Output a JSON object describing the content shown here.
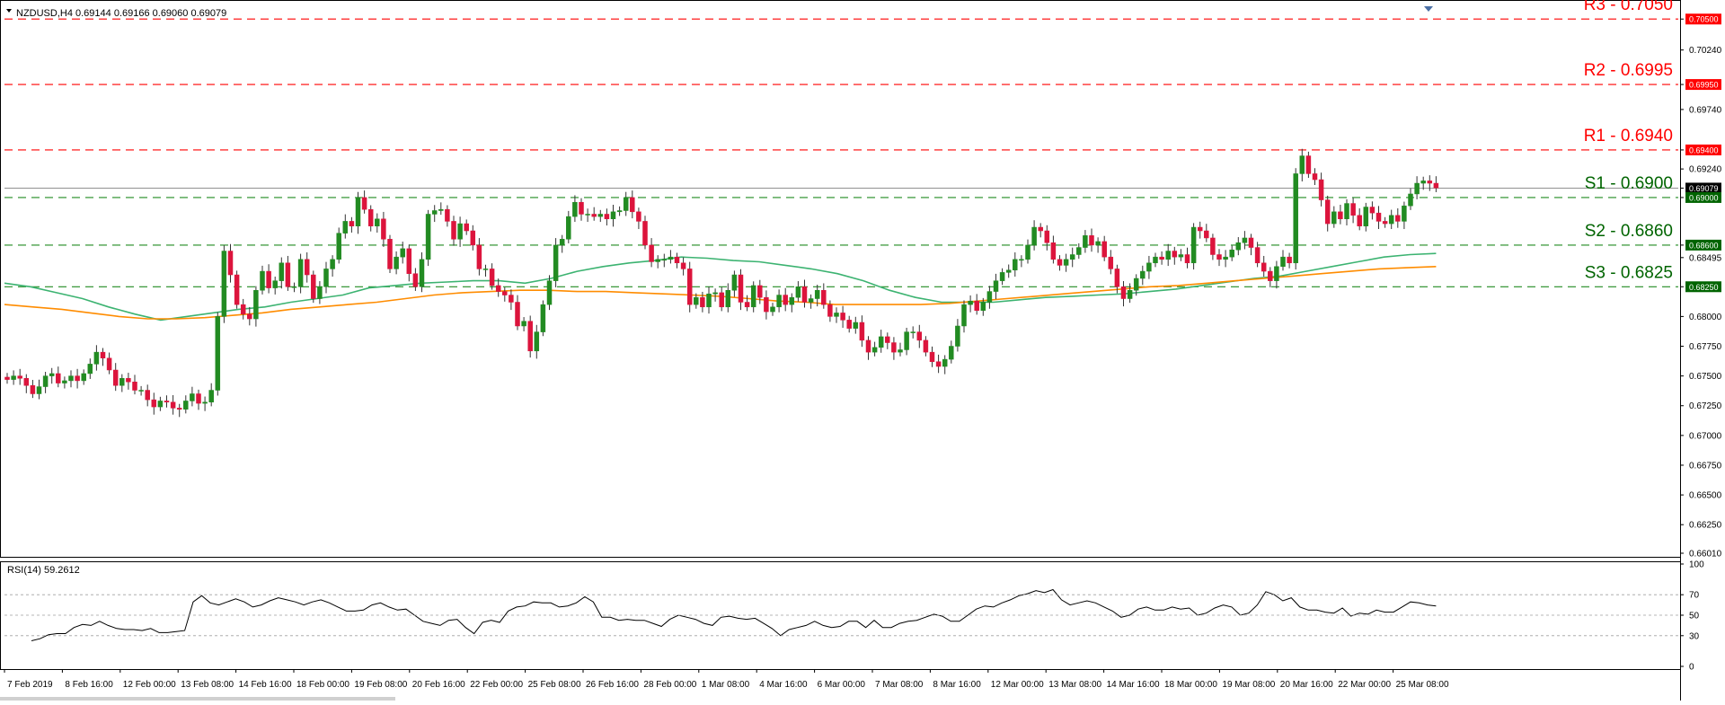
{
  "window": {
    "symbol_header": "NZDUSD,H4  0.69144 0.69166 0.69060 0.69079",
    "rsi_header": "RSI(14) 59.2612"
  },
  "colors": {
    "resistance": "#ff0000",
    "support": "#006400",
    "support_line": "#228b22",
    "bull_candle": "#228b22",
    "bear_candle": "#dc143c",
    "ma_fast": "#3cb371",
    "ma_slow": "#ff8c00",
    "rsi_line": "#000000",
    "current_price_tag": "#000000"
  },
  "price_axis": {
    "ylim": [
      0.6601,
      0.7063
    ],
    "ticks": [
      "0.70500",
      "0.70240",
      "0.69950",
      "0.69740",
      "0.69400",
      "0.69240",
      "0.69079",
      "0.69000",
      "0.68600",
      "0.68495",
      "0.68250",
      "0.68000",
      "0.67750",
      "0.67500",
      "0.67250",
      "0.67000",
      "0.66750",
      "0.66500",
      "0.66250",
      "0.66010"
    ],
    "red_tags": [
      "0.70500",
      "0.69950",
      "0.69400"
    ],
    "black_tag": "0.69079",
    "green_tags": [
      "0.69000",
      "0.68600",
      "0.68250"
    ]
  },
  "time_axis": {
    "labels": [
      "7 Feb 2019",
      "8 Feb 16:00",
      "12 Feb 00:00",
      "13 Feb 08:00",
      "14 Feb 16:00",
      "18 Feb 00:00",
      "19 Feb 08:00",
      "20 Feb 16:00",
      "22 Feb 00:00",
      "25 Feb 08:00",
      "26 Feb 16:00",
      "28 Feb 00:00",
      "1 Mar 08:00",
      "4 Mar 16:00",
      "6 Mar 00:00",
      "7 Mar 08:00",
      "8 Mar 16:00",
      "12 Mar 00:00",
      "13 Mar 08:00",
      "14 Mar 16:00",
      "18 Mar 00:00",
      "19 Mar 08:00",
      "20 Mar 16:00",
      "22 Mar 00:00",
      "25 Mar 08:00"
    ]
  },
  "levels": [
    {
      "name": "R3",
      "text": "R3 - 0.7050",
      "value": 0.705,
      "kind": "resistance"
    },
    {
      "name": "R2",
      "text": "R2 - 0.6995",
      "value": 0.6995,
      "kind": "resistance"
    },
    {
      "name": "R1",
      "text": "R1 - 0.6940",
      "value": 0.694,
      "kind": "resistance"
    },
    {
      "name": "S1",
      "text": "S1 - 0.6900",
      "value": 0.69,
      "kind": "support"
    },
    {
      "name": "S2",
      "text": "S2 - 0.6860",
      "value": 0.686,
      "kind": "support"
    },
    {
      "name": "S3",
      "text": "S3 - 0.6825",
      "value": 0.6825,
      "kind": "support"
    }
  ],
  "rsi_axis": {
    "ylim": [
      0,
      100
    ],
    "ticks": [
      "100",
      "70",
      "50",
      "30",
      "0"
    ],
    "dotted_levels": [
      70,
      50,
      30
    ]
  },
  "chart_data": {
    "type": "candlestick",
    "symbol": "NZDUSD",
    "timeframe": "H4",
    "close_series": [
      0.6747,
      0.675,
      0.6748,
      0.6742,
      0.6735,
      0.6741,
      0.675,
      0.6752,
      0.6744,
      0.6746,
      0.675,
      0.6746,
      0.6752,
      0.676,
      0.677,
      0.6765,
      0.6755,
      0.6742,
      0.6748,
      0.6745,
      0.6738,
      0.6738,
      0.673,
      0.6724,
      0.6729,
      0.6728,
      0.6723,
      0.6722,
      0.6729,
      0.6735,
      0.6727,
      0.6728,
      0.6738,
      0.68,
      0.6855,
      0.6835,
      0.681,
      0.6802,
      0.6798,
      0.6822,
      0.6838,
      0.6824,
      0.683,
      0.6845,
      0.6825,
      0.6825,
      0.6848,
      0.6835,
      0.6815,
      0.6825,
      0.684,
      0.6848,
      0.687,
      0.688,
      0.6876,
      0.69,
      0.689,
      0.6876,
      0.6882,
      0.6865,
      0.684,
      0.685,
      0.6857,
      0.6836,
      0.6825,
      0.6848,
      0.6886,
      0.6889,
      0.689,
      0.688,
      0.6865,
      0.6878,
      0.6872,
      0.686,
      0.684,
      0.684,
      0.6826,
      0.6821,
      0.6818,
      0.6812,
      0.6792,
      0.6796,
      0.6771,
      0.6787,
      0.681,
      0.683,
      0.686,
      0.6865,
      0.6884,
      0.6896,
      0.6886,
      0.6886,
      0.6884,
      0.6886,
      0.6882,
      0.6888,
      0.6889,
      0.69,
      0.6888,
      0.688,
      0.686,
      0.6846,
      0.6848,
      0.6848,
      0.685,
      0.6845,
      0.684,
      0.681,
      0.6816,
      0.6808,
      0.6819,
      0.682,
      0.6808,
      0.6822,
      0.6835,
      0.6812,
      0.6808,
      0.6826,
      0.6816,
      0.6804,
      0.6808,
      0.6818,
      0.681,
      0.6816,
      0.6825,
      0.6812,
      0.6815,
      0.6822,
      0.681,
      0.68,
      0.6803,
      0.6797,
      0.679,
      0.6795,
      0.678,
      0.677,
      0.6774,
      0.6783,
      0.6778,
      0.677,
      0.6772,
      0.6787,
      0.6787,
      0.678,
      0.677,
      0.6762,
      0.6758,
      0.6764,
      0.6775,
      0.6792,
      0.681,
      0.6813,
      0.6805,
      0.6812,
      0.6821,
      0.683,
      0.6837,
      0.6839,
      0.6848,
      0.6848,
      0.686,
      0.6875,
      0.6872,
      0.6862,
      0.6848,
      0.6843,
      0.6848,
      0.6852,
      0.6858,
      0.6868,
      0.686,
      0.6863,
      0.685,
      0.684,
      0.6825,
      0.6815,
      0.6822,
      0.6832,
      0.6838,
      0.6845,
      0.685,
      0.6848,
      0.6855,
      0.685,
      0.6852,
      0.6845,
      0.6875,
      0.6872,
      0.6866,
      0.6852,
      0.6848,
      0.685,
      0.6856,
      0.6862,
      0.6866,
      0.6858,
      0.6845,
      0.6838,
      0.683,
      0.6842,
      0.685,
      0.6845,
      0.692,
      0.6935,
      0.692,
      0.6915,
      0.6898,
      0.6878,
      0.6888,
      0.6882,
      0.6895,
      0.6885,
      0.6876,
      0.6892,
      0.6887,
      0.688,
      0.6878,
      0.6885,
      0.688,
      0.6893,
      0.6903,
      0.6912,
      0.6914,
      0.6912,
      0.6908
    ],
    "ma_fast_series": [
      0.6828,
      0.6825,
      0.682,
      0.6815,
      0.6808,
      0.6802,
      0.6797,
      0.68,
      0.6803,
      0.6806,
      0.6808,
      0.6812,
      0.6815,
      0.6818,
      0.6824,
      0.6826,
      0.6828,
      0.6829,
      0.683,
      0.683,
      0.6828,
      0.6832,
      0.6838,
      0.6842,
      0.6845,
      0.6847,
      0.685,
      0.6849,
      0.6847,
      0.6846,
      0.6843,
      0.684,
      0.6836,
      0.683,
      0.6822,
      0.6816,
      0.6812,
      0.6812,
      0.6812,
      0.6814,
      0.6816,
      0.6817,
      0.6818,
      0.6819,
      0.6821,
      0.6823,
      0.6826,
      0.6829,
      0.6832,
      0.6834,
      0.6838,
      0.6842,
      0.6846,
      0.685,
      0.6852,
      0.6853
    ],
    "ma_slow_series": [
      0.681,
      0.6808,
      0.6806,
      0.6803,
      0.68,
      0.6798,
      0.6798,
      0.6799,
      0.6801,
      0.6803,
      0.6806,
      0.6808,
      0.681,
      0.6812,
      0.6815,
      0.6818,
      0.682,
      0.6821,
      0.6822,
      0.6822,
      0.6821,
      0.6821,
      0.682,
      0.6819,
      0.6818,
      0.6817,
      0.6815,
      0.6813,
      0.6812,
      0.681,
      0.681,
      0.681,
      0.681,
      0.6811,
      0.6813,
      0.6815,
      0.6817,
      0.6819,
      0.6821,
      0.6823,
      0.6825,
      0.6826,
      0.6828,
      0.683,
      0.6832,
      0.6834,
      0.6836,
      0.6838,
      0.684,
      0.6841,
      0.6842
    ],
    "rsi_series": [
      25,
      27,
      31,
      32,
      32,
      38,
      41,
      40,
      44,
      40,
      37,
      36,
      36,
      35,
      37,
      33,
      33,
      34,
      35,
      63,
      69,
      62,
      60,
      63,
      66,
      63,
      58,
      60,
      64,
      67,
      65,
      63,
      60,
      63,
      65,
      62,
      58,
      54,
      54,
      55,
      60,
      62,
      58,
      55,
      56,
      50,
      44,
      42,
      40,
      45,
      46,
      38,
      32,
      43,
      45,
      43,
      54,
      58,
      59,
      63,
      62,
      62,
      58,
      59,
      62,
      68,
      63,
      48,
      48,
      45,
      46,
      45,
      45,
      42,
      39,
      46,
      50,
      48,
      46,
      42,
      40,
      48,
      49,
      47,
      46,
      47,
      42,
      37,
      30,
      36,
      38,
      40,
      44,
      40,
      38,
      39,
      44,
      44,
      38,
      45,
      38,
      38,
      42,
      44,
      45,
      48,
      51,
      49,
      44,
      44,
      50,
      56,
      59,
      58,
      62,
      65,
      69,
      71,
      74,
      72,
      75,
      65,
      60,
      62,
      64,
      62,
      58,
      54,
      48,
      50,
      56,
      58,
      55,
      55,
      58,
      56,
      57,
      50,
      52,
      57,
      60,
      58,
      50,
      52,
      60,
      73,
      70,
      64,
      67,
      58,
      55,
      55,
      53,
      52,
      57,
      49,
      52,
      51,
      55,
      53,
      53,
      58,
      63,
      62,
      60,
      59
    ]
  }
}
